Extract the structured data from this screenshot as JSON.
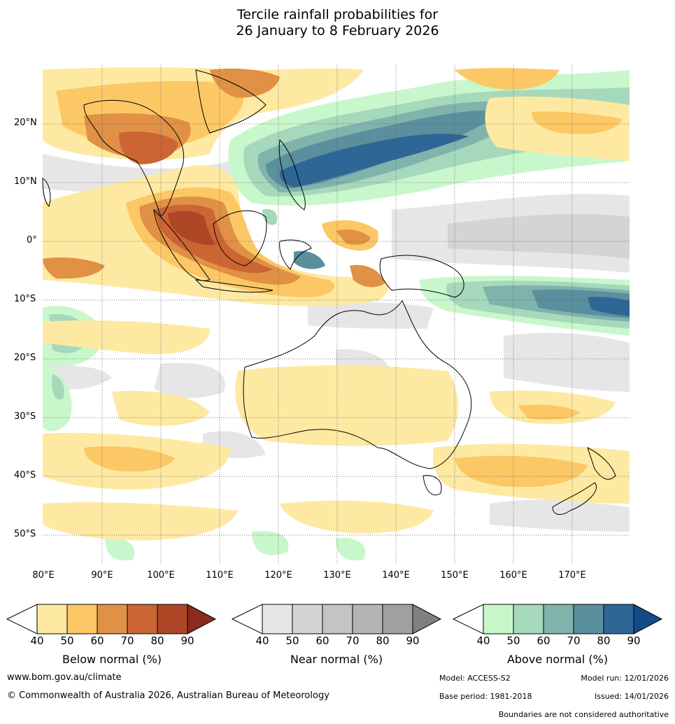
{
  "title": {
    "line1": "Tercile rainfall probabilities for",
    "line2": "26 January to 8 February 2026"
  },
  "map": {
    "lat_labels": [
      "20°N",
      "10°N",
      "0°",
      "10°S",
      "20°S",
      "30°S",
      "40°S",
      "50°S"
    ],
    "lon_labels": [
      "80°E",
      "90°E",
      "100°E",
      "110°E",
      "120°E",
      "130°E",
      "140°E",
      "150°E",
      "160°E",
      "170°E"
    ]
  },
  "colorbars": {
    "ticks": [
      "40",
      "50",
      "60",
      "70",
      "80",
      "90"
    ],
    "below": {
      "title": "Below normal (%)",
      "colors": [
        "#ffffff",
        "#fde9a2",
        "#fcc865",
        "#e09146",
        "#cb6533",
        "#ad4726",
        "#8c2a1c"
      ]
    },
    "near": {
      "title": "Near normal (%)",
      "colors": [
        "#ffffff",
        "#e6e6e6",
        "#d4d4d4",
        "#c4c4c4",
        "#b5b5b5",
        "#a0a0a0",
        "#808080"
      ]
    },
    "above": {
      "title": "Above normal (%)",
      "colors": [
        "#ffffff",
        "#c9f7cc",
        "#a6d8bc",
        "#7fb3ac",
        "#5a8f9e",
        "#2e6696",
        "#124b87"
      ]
    }
  },
  "footer": {
    "website": "www.bom.gov.au/climate",
    "copyright": "© Commonwealth of Australia 2026, Australian Bureau of Meteorology",
    "model": "Model: ACCESS-S2",
    "model_run": "Model run: 12/01/2026",
    "base_period": "Base period: 1981-2018",
    "issued": "Issued: 14/01/2026",
    "disclaimer": "Boundaries are not considered authoritative"
  }
}
